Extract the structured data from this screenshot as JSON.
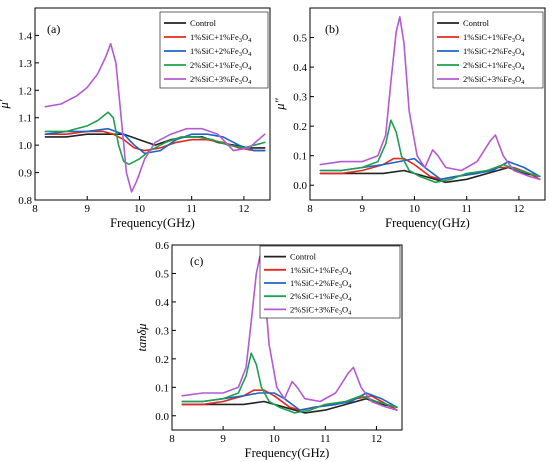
{
  "chart_data": [
    {
      "type": "line",
      "panel_label": "(a)",
      "xlabel": "Frequency(GHz)",
      "ylabel": "μ′",
      "xlim": [
        8,
        12.5
      ],
      "ylim": [
        0.8,
        1.5
      ],
      "xticks": [
        8,
        9,
        10,
        11,
        12
      ],
      "yticks": [
        0.8,
        0.9,
        1.0,
        1.1,
        1.2,
        1.3,
        1.4
      ],
      "tick_labels_y": [
        "0.8",
        "0.9",
        "1.0",
        "1.1",
        "1.2",
        "1.3",
        "1.4"
      ],
      "legend_position": "top-right",
      "series": [
        {
          "name": "Control",
          "color": "#222222",
          "x": [
            8.2,
            8.6,
            9.0,
            9.4,
            9.7,
            10.0,
            10.3,
            10.6,
            10.9,
            11.2,
            11.5,
            11.8,
            12.1,
            12.4
          ],
          "y": [
            1.03,
            1.03,
            1.04,
            1.04,
            1.04,
            1.02,
            1.0,
            1.02,
            1.03,
            1.03,
            1.01,
            1.0,
            0.99,
            0.99
          ]
        },
        {
          "name": "1%SiC+1%Fe3O4",
          "color": "#e8281e",
          "x": [
            8.2,
            8.6,
            9.0,
            9.3,
            9.5,
            9.7,
            9.9,
            10.1,
            10.4,
            10.7,
            11.0,
            11.3,
            11.6,
            11.9,
            12.2,
            12.4
          ],
          "y": [
            1.04,
            1.04,
            1.05,
            1.05,
            1.04,
            1.02,
            0.99,
            0.98,
            0.99,
            1.01,
            1.02,
            1.02,
            1.01,
            0.99,
            0.98,
            0.98
          ]
        },
        {
          "name": "1%SiC+2%Fe3O4",
          "color": "#1c64c8",
          "x": [
            8.2,
            8.6,
            9.0,
            9.4,
            9.7,
            9.9,
            10.1,
            10.4,
            10.7,
            11.0,
            11.3,
            11.6,
            11.9,
            12.2,
            12.4
          ],
          "y": [
            1.04,
            1.05,
            1.05,
            1.06,
            1.04,
            1.0,
            0.97,
            0.98,
            1.02,
            1.04,
            1.04,
            1.03,
            1.0,
            0.98,
            0.98
          ]
        },
        {
          "name": "2%SiC+1%Fe3O4",
          "color": "#1ea050",
          "x": [
            8.2,
            8.6,
            9.0,
            9.2,
            9.4,
            9.5,
            9.6,
            9.7,
            9.8,
            10.0,
            10.2,
            10.5,
            10.8,
            11.1,
            11.4,
            11.7,
            12.0,
            12.4
          ],
          "y": [
            1.05,
            1.05,
            1.07,
            1.09,
            1.12,
            1.1,
            1.0,
            0.94,
            0.93,
            0.95,
            0.98,
            1.01,
            1.03,
            1.03,
            1.02,
            1.0,
            0.99,
            1.01
          ]
        },
        {
          "name": "2%SiC+3%Fe3O4",
          "color": "#b45ad2",
          "x": [
            8.2,
            8.5,
            8.8,
            9.0,
            9.2,
            9.35,
            9.45,
            9.55,
            9.65,
            9.75,
            9.85,
            9.95,
            10.1,
            10.3,
            10.6,
            10.9,
            11.2,
            11.5,
            11.8,
            12.1,
            12.4
          ],
          "y": [
            1.14,
            1.15,
            1.18,
            1.21,
            1.26,
            1.32,
            1.37,
            1.3,
            1.1,
            0.9,
            0.83,
            0.87,
            0.95,
            1.01,
            1.04,
            1.06,
            1.06,
            1.04,
            0.98,
            0.99,
            1.04
          ]
        }
      ]
    },
    {
      "type": "line",
      "panel_label": "(b)",
      "xlabel": "Frequency(GHz)",
      "ylabel": "μ″",
      "xlim": [
        8,
        12.5
      ],
      "ylim": [
        -0.05,
        0.6
      ],
      "xticks": [
        8,
        9,
        10,
        11,
        12
      ],
      "yticks": [
        0.0,
        0.1,
        0.2,
        0.3,
        0.4,
        0.5
      ],
      "tick_labels_y": [
        "0.0",
        "0.1",
        "0.2",
        "0.3",
        "0.4",
        "0.5"
      ],
      "legend_position": "top-right",
      "series": [
        {
          "name": "Control",
          "color": "#222222",
          "x": [
            8.2,
            8.6,
            9.0,
            9.4,
            9.8,
            10.2,
            10.4,
            10.6,
            11.0,
            11.4,
            11.8,
            12.1,
            12.4
          ],
          "y": [
            0.04,
            0.04,
            0.04,
            0.04,
            0.05,
            0.03,
            0.02,
            0.01,
            0.02,
            0.04,
            0.06,
            0.04,
            0.03
          ]
        },
        {
          "name": "1%SiC+1%Fe3O4",
          "color": "#e8281e",
          "x": [
            8.2,
            8.6,
            9.0,
            9.4,
            9.6,
            9.8,
            10.0,
            10.3,
            10.5,
            10.8,
            11.2,
            11.6,
            11.9,
            12.2,
            12.4
          ],
          "y": [
            0.04,
            0.04,
            0.05,
            0.07,
            0.09,
            0.09,
            0.07,
            0.03,
            0.02,
            0.03,
            0.04,
            0.06,
            0.06,
            0.04,
            0.02
          ]
        },
        {
          "name": "1%SiC+2%Fe3O4",
          "color": "#1c64c8",
          "x": [
            8.2,
            8.6,
            9.0,
            9.4,
            9.7,
            10.0,
            10.2,
            10.5,
            10.8,
            11.2,
            11.5,
            11.8,
            12.1,
            12.4
          ],
          "y": [
            0.05,
            0.05,
            0.06,
            0.07,
            0.08,
            0.09,
            0.06,
            0.02,
            0.03,
            0.04,
            0.05,
            0.08,
            0.06,
            0.03
          ]
        },
        {
          "name": "2%SiC+1%Fe3O4",
          "color": "#1ea050",
          "x": [
            8.2,
            8.6,
            9.0,
            9.3,
            9.45,
            9.55,
            9.65,
            9.75,
            9.9,
            10.1,
            10.4,
            10.7,
            11.0,
            11.4,
            11.7,
            12.0,
            12.4
          ],
          "y": [
            0.05,
            0.05,
            0.06,
            0.08,
            0.14,
            0.22,
            0.18,
            0.1,
            0.05,
            0.03,
            0.01,
            0.02,
            0.04,
            0.05,
            0.07,
            0.05,
            0.03
          ]
        },
        {
          "name": "2%SiC+3%Fe3O4",
          "color": "#b45ad2",
          "x": [
            8.2,
            8.6,
            9.0,
            9.3,
            9.45,
            9.55,
            9.65,
            9.72,
            9.8,
            9.9,
            10.05,
            10.2,
            10.35,
            10.45,
            10.6,
            10.9,
            11.2,
            11.45,
            11.55,
            11.7,
            11.9,
            12.2,
            12.4
          ],
          "y": [
            0.07,
            0.08,
            0.08,
            0.1,
            0.17,
            0.35,
            0.52,
            0.57,
            0.48,
            0.25,
            0.1,
            0.06,
            0.12,
            0.1,
            0.06,
            0.05,
            0.08,
            0.15,
            0.17,
            0.1,
            0.05,
            0.03,
            0.02
          ]
        }
      ]
    },
    {
      "type": "line",
      "panel_label": "(c)",
      "xlabel": "Frequency(GHz)",
      "ylabel": "tanδμ",
      "xlim": [
        8,
        12.5
      ],
      "ylim": [
        -0.05,
        0.6
      ],
      "xticks": [
        8,
        9,
        10,
        11,
        12
      ],
      "yticks": [
        0.0,
        0.1,
        0.2,
        0.3,
        0.4,
        0.5,
        0.6
      ],
      "tick_labels_y": [
        "0.0",
        "0.1",
        "0.2",
        "0.3",
        "0.4",
        "0.5",
        "0.6"
      ],
      "legend_position": "top-right",
      "series": [
        {
          "name": "Control",
          "color": "#222222",
          "x": [
            8.2,
            8.6,
            9.0,
            9.4,
            9.8,
            10.2,
            10.4,
            10.6,
            11.0,
            11.4,
            11.8,
            12.1,
            12.4
          ],
          "y": [
            0.04,
            0.04,
            0.04,
            0.04,
            0.05,
            0.03,
            0.02,
            0.01,
            0.02,
            0.04,
            0.06,
            0.04,
            0.03
          ]
        },
        {
          "name": "1%SiC+1%Fe3O4",
          "color": "#e8281e",
          "x": [
            8.2,
            8.6,
            9.0,
            9.4,
            9.6,
            9.8,
            10.0,
            10.3,
            10.5,
            10.8,
            11.2,
            11.6,
            11.9,
            12.2,
            12.4
          ],
          "y": [
            0.04,
            0.04,
            0.05,
            0.07,
            0.09,
            0.09,
            0.07,
            0.03,
            0.02,
            0.03,
            0.04,
            0.06,
            0.07,
            0.04,
            0.02
          ]
        },
        {
          "name": "1%SiC+2%Fe3O4",
          "color": "#1c64c8",
          "x": [
            8.2,
            8.6,
            9.0,
            9.4,
            9.7,
            10.0,
            10.2,
            10.5,
            10.8,
            11.2,
            11.5,
            11.8,
            12.1,
            12.4
          ],
          "y": [
            0.05,
            0.05,
            0.06,
            0.07,
            0.08,
            0.08,
            0.06,
            0.02,
            0.03,
            0.04,
            0.05,
            0.08,
            0.06,
            0.03
          ]
        },
        {
          "name": "2%SiC+1%Fe3O4",
          "color": "#1ea050",
          "x": [
            8.2,
            8.6,
            9.0,
            9.3,
            9.45,
            9.55,
            9.65,
            9.75,
            9.9,
            10.1,
            10.4,
            10.7,
            11.0,
            11.4,
            11.7,
            12.0,
            12.4
          ],
          "y": [
            0.05,
            0.05,
            0.06,
            0.08,
            0.14,
            0.22,
            0.18,
            0.1,
            0.05,
            0.03,
            0.01,
            0.02,
            0.04,
            0.05,
            0.07,
            0.05,
            0.03
          ]
        },
        {
          "name": "2%SiC+3%Fe3O4",
          "color": "#b45ad2",
          "x": [
            8.2,
            8.6,
            9.0,
            9.3,
            9.45,
            9.55,
            9.65,
            9.72,
            9.8,
            9.9,
            10.05,
            10.2,
            10.35,
            10.45,
            10.6,
            10.9,
            11.2,
            11.45,
            11.55,
            11.7,
            11.9,
            12.2,
            12.4
          ],
          "y": [
            0.07,
            0.08,
            0.08,
            0.1,
            0.17,
            0.33,
            0.5,
            0.56,
            0.47,
            0.25,
            0.1,
            0.06,
            0.12,
            0.1,
            0.06,
            0.05,
            0.08,
            0.15,
            0.17,
            0.1,
            0.05,
            0.03,
            0.02
          ]
        }
      ]
    }
  ]
}
